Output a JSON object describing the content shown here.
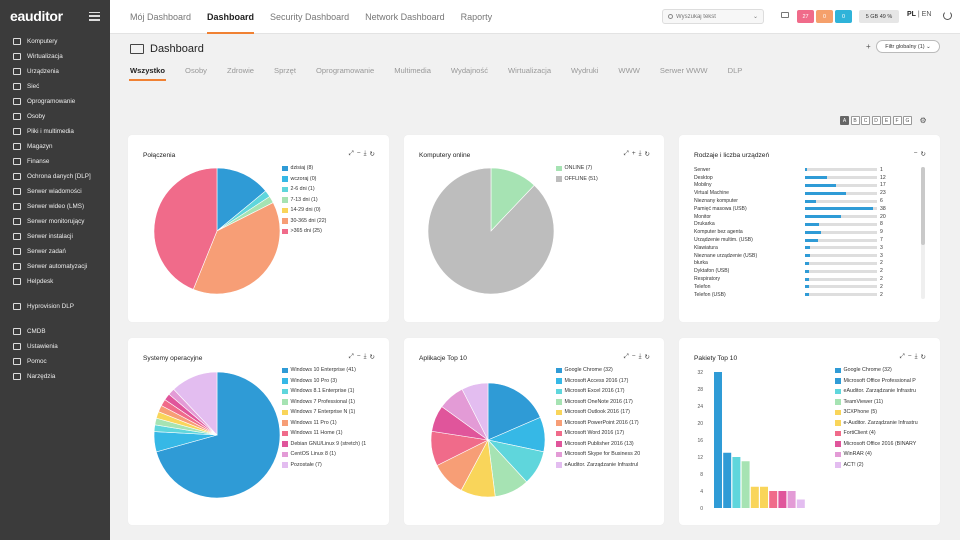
{
  "app": {
    "logo": "eauditor"
  },
  "sidebar": {
    "items": [
      {
        "label": "Komputery"
      },
      {
        "label": "Wirtualizacja"
      },
      {
        "label": "Urządzenia"
      },
      {
        "label": "Sieć"
      },
      {
        "label": "Oprogramowanie"
      },
      {
        "label": "Osoby"
      },
      {
        "label": "Pliki i multimedia"
      },
      {
        "label": "Magazyn"
      },
      {
        "label": "Finanse"
      },
      {
        "label": "Ochrona danych [DLP]"
      },
      {
        "label": "Serwer wiadomości"
      },
      {
        "label": "Serwer wideo (LMS)"
      },
      {
        "label": "Serwer monitorujący"
      },
      {
        "label": "Serwer instalacji"
      },
      {
        "label": "Serwer zadań"
      },
      {
        "label": "Serwer automatyzacji"
      },
      {
        "label": "Helpdesk"
      }
    ],
    "items2": [
      {
        "label": "Hyprovision DLP"
      }
    ],
    "items3": [
      {
        "label": "CMDB"
      },
      {
        "label": "Ustawienia"
      },
      {
        "label": "Pomoc"
      },
      {
        "label": "Narzędzia"
      }
    ]
  },
  "topbar": {
    "tabs": [
      "Mój Dashboard",
      "Dashboard",
      "Security Dashboard",
      "Network Dashboard",
      "Raporty"
    ],
    "active_tab": 1,
    "search_placeholder": "Wyszukaj tekst",
    "badges": [
      {
        "value": "27",
        "color": "#f06b8a"
      },
      {
        "value": "0",
        "color": "#f5a06b"
      },
      {
        "value": "0",
        "color": "#2fb3d9"
      }
    ],
    "usage": "5 GB 49 %",
    "lang_active": "PL",
    "lang_other": "EN"
  },
  "page": {
    "title": "Dashboard",
    "filter_label": "Filtr globalny (1)",
    "subtabs": [
      "Wszystko",
      "Osoby",
      "Zdrowie",
      "Sprzęt",
      "Oprogramowanie",
      "Multimedia",
      "Wydajność",
      "Wirtualizacja",
      "Wydruki",
      "WWW",
      "Serwer WWW",
      "DLP"
    ],
    "layouts": [
      "A",
      "B",
      "C",
      "D",
      "E",
      "F",
      "G"
    ]
  },
  "cards": {
    "connections": {
      "title": "Połączenia",
      "items": [
        {
          "label": "dzisiaj (8)",
          "value": 8,
          "color": "#2f9bd6"
        },
        {
          "label": "wczoraj (0)",
          "value": 0,
          "color": "#36b8e6"
        },
        {
          "label": "2-6 dni (1)",
          "value": 1,
          "color": "#5fd6dc"
        },
        {
          "label": "7-13 dni (1)",
          "value": 1,
          "color": "#a6e3b3"
        },
        {
          "label": "14-29 dni (0)",
          "value": 0,
          "color": "#f9d55a"
        },
        {
          "label": "30-365 dni (22)",
          "value": 22,
          "color": "#f79e76"
        },
        {
          "label": ">365 dni (25)",
          "value": 25,
          "color": "#f06b8a"
        }
      ]
    },
    "online": {
      "title": "Komputery online",
      "items": [
        {
          "label": "ONLINE (7)",
          "value": 7,
          "color": "#a6e3b3"
        },
        {
          "label": "OFFLINE (51)",
          "value": 51,
          "color": "#bdbdbd"
        }
      ]
    },
    "devices": {
      "title": "Rodzaje i liczba urządzeń",
      "max": 40,
      "items": [
        {
          "label": "Serwer",
          "value": 1
        },
        {
          "label": "Desktop",
          "value": 12
        },
        {
          "label": "Mobilny",
          "value": 17
        },
        {
          "label": "Virtual Machine",
          "value": 23
        },
        {
          "label": "Nieznany komputer",
          "value": 6
        },
        {
          "label": "Pamięć masowa (USB)",
          "value": 38
        },
        {
          "label": "Monitor",
          "value": 20
        },
        {
          "label": "Drukarka",
          "value": 8
        },
        {
          "label": "Komputer bez agenta",
          "value": 9
        },
        {
          "label": "Urządzenie multim. (USB)",
          "value": 7
        },
        {
          "label": "Klawiatura",
          "value": 3
        },
        {
          "label": "Nieznane urządzenie (USB)",
          "value": 3
        },
        {
          "label": "błurka",
          "value": 2
        },
        {
          "label": "Dyktafon (USB)",
          "value": 2
        },
        {
          "label": "Respiratory",
          "value": 2
        },
        {
          "label": "Telefon",
          "value": 2
        },
        {
          "label": "Telefon (USB)",
          "value": 2
        }
      ]
    },
    "os": {
      "title": "Systemy operacyjne",
      "items": [
        {
          "label": "Windows 10 Enterprise (41)",
          "value": 41,
          "color": "#2f9bd6"
        },
        {
          "label": "Windows 10 Pro (3)",
          "value": 3,
          "color": "#36b8e6"
        },
        {
          "label": "Windows 8.1 Enterprise (1)",
          "value": 1,
          "color": "#5fd6dc"
        },
        {
          "label": "Windows 7 Professional (1)",
          "value": 1,
          "color": "#a6e3b3"
        },
        {
          "label": "Windows 7 Enterprise N (1)",
          "value": 1,
          "color": "#f9d55a"
        },
        {
          "label": "Windows 11 Pro (1)",
          "value": 1,
          "color": "#f79e76"
        },
        {
          "label": "Windows 11 Home (1)",
          "value": 1,
          "color": "#f06b8a"
        },
        {
          "label": "Debian GNU/Linux 9 (stretch) (1",
          "value": 1,
          "color": "#e0559b"
        },
        {
          "label": "CentOS Linux 8 (1)",
          "value": 1,
          "color": "#e39bd6"
        },
        {
          "label": "Pozostałe (7)",
          "value": 7,
          "color": "#e3bdf0"
        }
      ]
    },
    "apps": {
      "title": "Aplikacje Top 10",
      "items": [
        {
          "label": "Google Chrome (32)",
          "value": 32,
          "color": "#2f9bd6"
        },
        {
          "label": "Microsoft Access 2016 (17)",
          "value": 17,
          "color": "#36b8e6"
        },
        {
          "label": "Microsoft Excel 2016 (17)",
          "value": 17,
          "color": "#5fd6dc"
        },
        {
          "label": "Microsoft OneNote 2016 (17)",
          "value": 17,
          "color": "#a6e3b3"
        },
        {
          "label": "Microsoft Outlook 2016 (17)",
          "value": 17,
          "color": "#f9d55a"
        },
        {
          "label": "Microsoft PowerPoint 2016 (17)",
          "value": 17,
          "color": "#f79e76"
        },
        {
          "label": "Microsoft Word 2016 (17)",
          "value": 17,
          "color": "#f06b8a"
        },
        {
          "label": "Microsoft Publisher 2016 (13)",
          "value": 13,
          "color": "#e0559b"
        },
        {
          "label": "Microsoft Skype for Business 20",
          "value": 13,
          "color": "#e39bd6"
        },
        {
          "label": "eAuditor. Zarządzanie Infrastrul",
          "value": 13,
          "color": "#e3bdf0"
        }
      ]
    },
    "packages": {
      "title": "Pakiety Top 10",
      "yticks": [
        "32",
        "28",
        "24",
        "20",
        "16",
        "12",
        "8",
        "4",
        "0"
      ],
      "ymax": 32,
      "items": [
        {
          "label": "Google Chrome (32)",
          "value": 32,
          "color": "#2f9bd6"
        },
        {
          "label": "Microsoft Office Professional P",
          "value": 13,
          "color": "#2f9bd6"
        },
        {
          "label": "eAuditor. Zarządzanie Infrastru",
          "value": 12,
          "color": "#5fd6dc"
        },
        {
          "label": "TeamViewer (11)",
          "value": 11,
          "color": "#a6e3b3"
        },
        {
          "label": "3CXPhone (5)",
          "value": 5,
          "color": "#f9d55a"
        },
        {
          "label": "e-Auditor. Zarządzanie Infrastru",
          "value": 5,
          "color": "#f9d55a"
        },
        {
          "label": "FortiClient (4)",
          "value": 4,
          "color": "#f06b8a"
        },
        {
          "label": "Microsoft Office 2016 (BINARY",
          "value": 4,
          "color": "#e0559b"
        },
        {
          "label": "WinRAR (4)",
          "value": 4,
          "color": "#e39bd6"
        },
        {
          "label": "ACT! (2)",
          "value": 2,
          "color": "#e3bdf0"
        }
      ]
    }
  }
}
